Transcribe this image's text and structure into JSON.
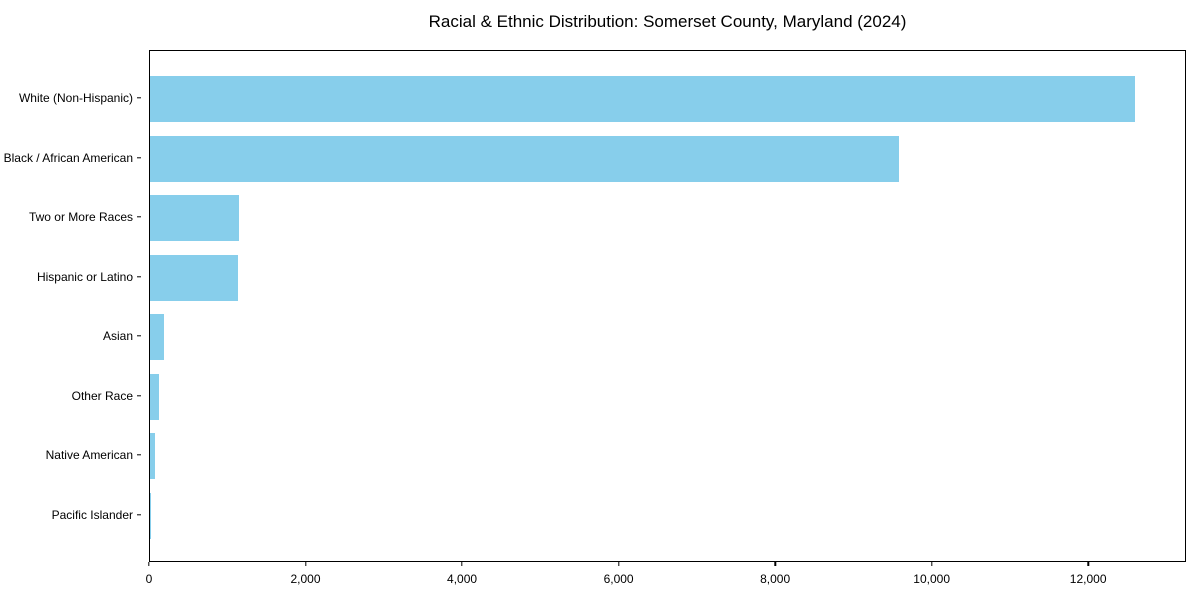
{
  "title": "Racial & Ethnic Distribution: Somerset County, Maryland (2024)",
  "chart_data": {
    "type": "bar",
    "orientation": "horizontal",
    "title": "Racial & Ethnic Distribution: Somerset County, Maryland (2024)",
    "categories": [
      "White (Non-Hispanic)",
      "Black / African American",
      "Two or More Races",
      "Hispanic or Latino",
      "Asian",
      "Other Race",
      "Native American",
      "Pacific Islander"
    ],
    "values": [
      12610,
      9585,
      1140,
      1125,
      180,
      120,
      60,
      10
    ],
    "bar_color": "#87CEEB",
    "frame_color": "#000000",
    "background_color": "#ffffff",
    "xlabel": "",
    "ylabel": "",
    "xlim": [
      0,
      13250
    ],
    "x_ticks": [
      0,
      2000,
      4000,
      6000,
      8000,
      10000,
      12000
    ],
    "x_tick_labels": [
      "0",
      "2,000",
      "4,000",
      "6,000",
      "8,000",
      "10,000",
      "12,000"
    ],
    "grid": false,
    "legend": null
  }
}
